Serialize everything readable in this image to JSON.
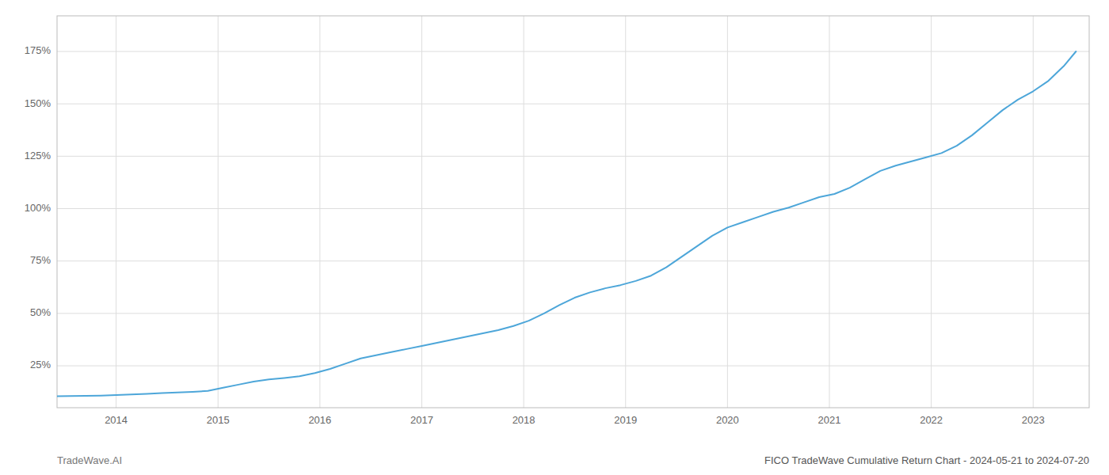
{
  "chart_data": {
    "type": "line",
    "title": "FICO TradeWave Cumulative Return Chart - 2024-05-21 to 2024-07-20",
    "annotations": [
      "TradeWave.AI"
    ],
    "color": "#4da6d9",
    "grid": true,
    "x": [
      2013.42,
      2013.55,
      2013.7,
      2013.85,
      2014.0,
      2014.15,
      2014.3,
      2014.45,
      2014.6,
      2014.75,
      2014.9,
      2015.05,
      2015.2,
      2015.35,
      2015.5,
      2015.65,
      2015.8,
      2015.95,
      2016.1,
      2016.25,
      2016.4,
      2016.55,
      2016.7,
      2016.85,
      2017.0,
      2017.15,
      2017.3,
      2017.45,
      2017.6,
      2017.75,
      2017.9,
      2018.05,
      2018.2,
      2018.35,
      2018.5,
      2018.65,
      2018.8,
      2018.95,
      2019.1,
      2019.25,
      2019.4,
      2019.55,
      2019.7,
      2019.85,
      2020.0,
      2020.15,
      2020.3,
      2020.45,
      2020.6,
      2020.75,
      2020.9,
      2021.05,
      2021.2,
      2021.35,
      2021.5,
      2021.65,
      2021.8,
      2021.95,
      2022.1,
      2022.25,
      2022.4,
      2022.55,
      2022.7,
      2022.85,
      2023.0,
      2023.15,
      2023.3,
      2023.42
    ],
    "values": [
      10.5,
      10.6,
      10.7,
      10.8,
      11.0,
      11.3,
      11.6,
      12.0,
      12.3,
      12.6,
      13.0,
      14.5,
      16.0,
      17.5,
      18.5,
      19.2,
      20.0,
      21.5,
      23.5,
      26.0,
      28.5,
      30.0,
      31.5,
      33.0,
      34.5,
      36.0,
      37.5,
      39.0,
      40.5,
      42.0,
      44.0,
      46.5,
      50.0,
      54.0,
      57.5,
      60.0,
      62.0,
      63.5,
      65.5,
      68.0,
      72.0,
      77.0,
      82.0,
      87.0,
      91.0,
      93.5,
      96.0,
      98.5,
      100.5,
      103.0,
      105.5,
      107.0,
      110.0,
      114.0,
      118.0,
      120.5,
      122.5,
      124.5,
      126.5,
      130.0,
      135.0,
      141.0,
      147.0,
      152.0,
      156.0,
      161.0,
      168.0,
      175.0
    ],
    "xlim": [
      2013.42,
      2023.55
    ],
    "xticks": [
      2014,
      2015,
      2016,
      2017,
      2018,
      2019,
      2020,
      2021,
      2022,
      2023
    ],
    "ylim": [
      5,
      192
    ],
    "yticks": [
      {
        "value": 25,
        "label": "25%"
      },
      {
        "value": 50,
        "label": "50%"
      },
      {
        "value": 75,
        "label": "75%"
      },
      {
        "value": 100,
        "label": "100%"
      },
      {
        "value": 125,
        "label": "125%"
      },
      {
        "value": 150,
        "label": "150%"
      },
      {
        "value": 175,
        "label": "175%"
      }
    ]
  }
}
